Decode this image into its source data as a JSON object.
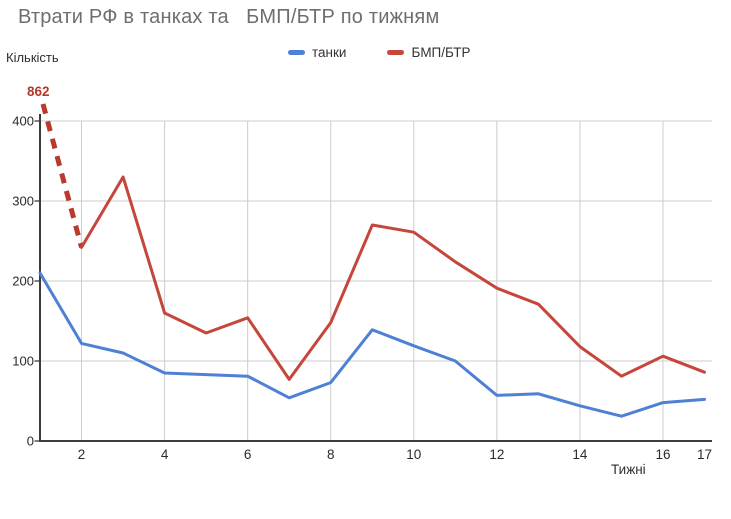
{
  "title": "Втрати РФ в танках та   БМП/БТР по тижням",
  "axes": {
    "y_title": "Кількість",
    "x_title": "Тижні"
  },
  "legend": {
    "position": "top-center",
    "items": [
      {
        "label": "танки",
        "color": "#4e80d4"
      },
      {
        "label": "БМП/БТР",
        "color": "#c5463a"
      }
    ]
  },
  "annotation": {
    "label": "862",
    "color": "#b5382b",
    "meaning": "off-scale БМП/БТР value for week 1"
  },
  "chart_data": {
    "type": "line",
    "x": [
      1,
      2,
      3,
      4,
      5,
      6,
      7,
      8,
      9,
      10,
      11,
      12,
      13,
      14,
      15,
      16,
      17
    ],
    "series": [
      {
        "name": "танки",
        "color": "#4e80d4",
        "values": [
          210,
          122,
          110,
          85,
          83,
          81,
          54,
          73,
          139,
          119,
          100,
          57,
          59,
          44,
          31,
          48,
          52
        ]
      },
      {
        "name": "БМП/БТР",
        "color": "#c5463a",
        "values": [
          862,
          242,
          330,
          160,
          135,
          154,
          77,
          148,
          270,
          261,
          224,
          191,
          171,
          118,
          81,
          106,
          86
        ],
        "off_scale_note": "week-1 value 862 exceeds the y-axis range and is drawn as a thick dashed drop-in segment ending at week 2"
      }
    ],
    "title": "Втрати РФ в танках та БМП/БТР по тижням",
    "xlabel": "Тижні",
    "ylabel": "Кількість",
    "xticks": [
      2,
      4,
      6,
      8,
      10,
      12,
      14,
      16,
      17
    ],
    "yticks": [
      0,
      100,
      200,
      300,
      400
    ],
    "xlim": [
      1,
      17
    ],
    "ylim": [
      0,
      400
    ],
    "grid": true,
    "legend_position": "top"
  },
  "colors": {
    "background": "#ffffff",
    "grid": "#cccccc",
    "axis": "#3c3c3c",
    "title_text": "#6e6e6e",
    "tick_text": "#2b2b2b",
    "dashed_segment": "#b9392d"
  }
}
